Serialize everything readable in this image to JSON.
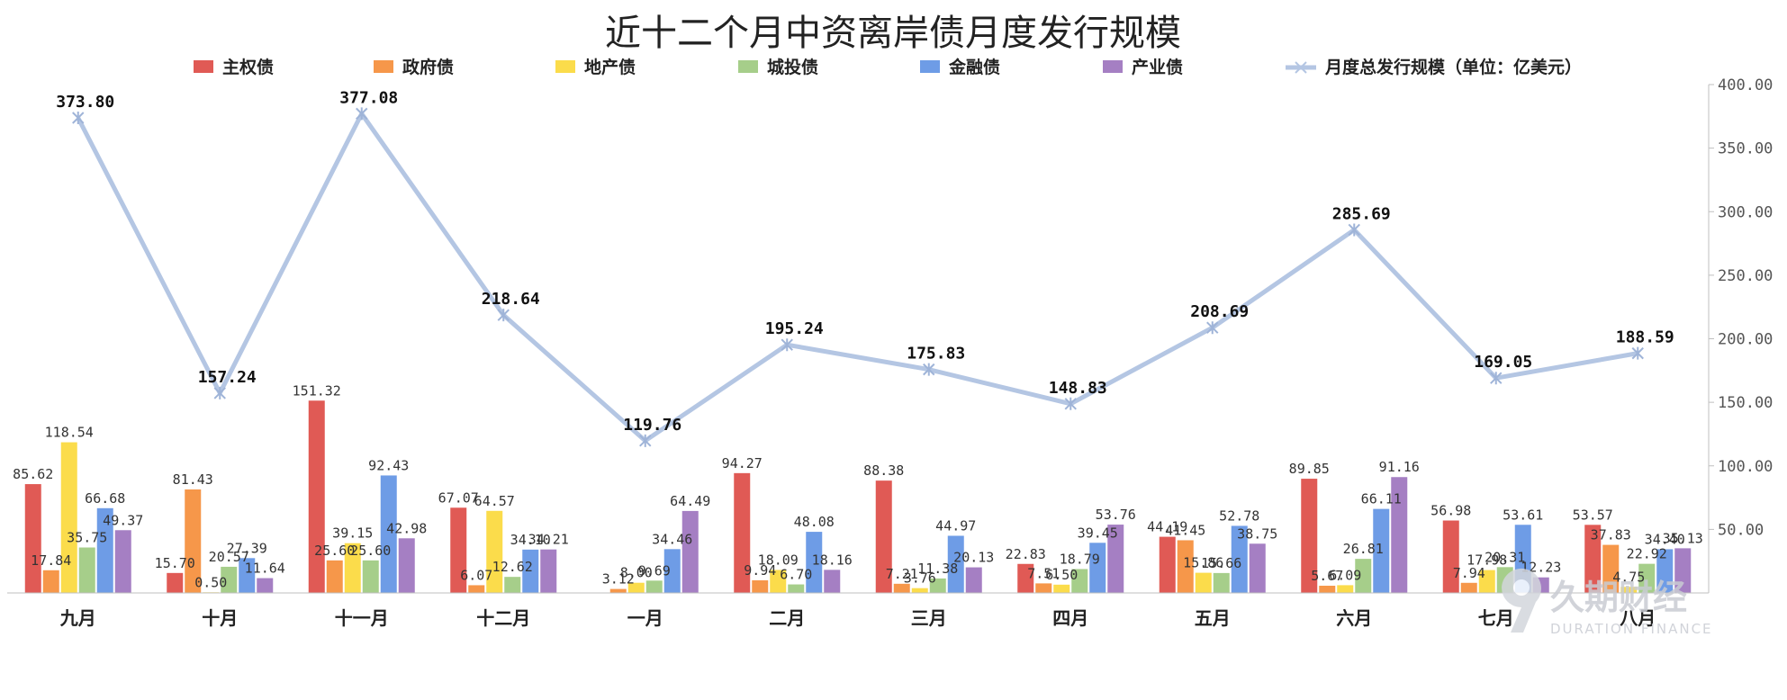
{
  "chart_data": {
    "type": "bar",
    "title": "近十二个月中资离岸债月度发行规模",
    "categories": [
      "九月",
      "十月",
      "十一月",
      "十二月",
      "一月",
      "二月",
      "三月",
      "四月",
      "五月",
      "六月",
      "七月",
      "八月"
    ],
    "ylim": [
      0,
      400
    ],
    "yticks": [
      "400.00",
      "350.00",
      "300.00",
      "250.00",
      "200.00",
      "150.00",
      "100.00",
      "50.00"
    ],
    "y_axis_position": "right",
    "grid": false,
    "legend_position": "top",
    "series": [
      {
        "name": "主权债",
        "color": "#e05a55",
        "values": [
          85.62,
          15.7,
          151.32,
          67.07,
          null,
          94.27,
          88.38,
          22.83,
          44.19,
          89.85,
          56.98,
          53.57
        ],
        "labels": [
          "85.62",
          "15.70",
          "151.32",
          "67.07",
          "",
          "94.27",
          "88.38",
          "22.83",
          "44.19",
          "89.85",
          "56.98",
          "53.57"
        ]
      },
      {
        "name": "政府债",
        "color": "#f6974a",
        "values": [
          17.84,
          81.43,
          25.6,
          6.07,
          3.12,
          9.94,
          7.21,
          7.51,
          41.45,
          5.67,
          7.94,
          37.83
        ],
        "labels": [
          "17.84",
          "81.43",
          "25.60",
          "6.07",
          "3.12",
          "9.94",
          "7.21",
          "7.51",
          "41.45",
          "5.67",
          "7.94",
          "37.83"
        ]
      },
      {
        "name": "地产债",
        "color": "#fbdc4b",
        "values": [
          118.54,
          0.5,
          39.15,
          64.57,
          8.0,
          18.09,
          3.76,
          6.5,
          15.86,
          6.09,
          17.98,
          4.75
        ],
        "labels": [
          "118.54",
          "0.50",
          "39.15",
          "64.57",
          "8.00",
          "18.09",
          "3.76",
          "6.50",
          "15.86",
          "6.09",
          "17.98",
          "4.75"
        ]
      },
      {
        "name": "城投债",
        "color": "#a6ce8a",
        "values": [
          35.75,
          20.57,
          25.6,
          12.62,
          9.69,
          6.7,
          11.38,
          18.79,
          15.66,
          26.81,
          20.31,
          22.92
        ],
        "labels": [
          "35.75",
          "20.57",
          "25.60",
          "12.62",
          "9.69",
          "6.70",
          "11.38",
          "18.79",
          "15.66",
          "26.81",
          "20.31",
          "22.92"
        ]
      },
      {
        "name": "金融债",
        "color": "#6e9ce6",
        "values": [
          66.68,
          27.39,
          92.43,
          34.1,
          34.46,
          48.08,
          44.97,
          39.45,
          52.78,
          66.11,
          53.61,
          34.4
        ],
        "labels": [
          "66.68",
          "27.39",
          "92.43",
          "34.10",
          "34.46",
          "48.08",
          "44.97",
          "39.45",
          "52.78",
          "66.11",
          "53.61",
          "34.40"
        ]
      },
      {
        "name": "产业债",
        "color": "#a57fc3",
        "values": [
          49.37,
          11.64,
          42.98,
          34.21,
          64.49,
          18.16,
          20.13,
          53.76,
          38.75,
          91.16,
          12.23,
          35.13
        ],
        "labels": [
          "49.37",
          "11.64",
          "42.98",
          "34.21",
          "64.49",
          "18.16",
          "20.13",
          "53.76",
          "38.75",
          "91.16",
          "12.23",
          "35.13"
        ]
      }
    ],
    "line": {
      "name": "月度总发行规模（单位：亿美元）",
      "color": "#b4c6e3",
      "values": [
        373.8,
        157.24,
        377.08,
        218.64,
        119.76,
        195.24,
        175.83,
        148.83,
        208.69,
        285.69,
        169.05,
        188.59
      ],
      "labels": [
        "373.80",
        "157.24",
        "377.08",
        "218.64",
        "119.76",
        "195.24",
        "175.83",
        "148.83",
        "208.69",
        "285.69",
        "169.05",
        "188.59"
      ]
    }
  },
  "watermark": {
    "logo_icon": "duration-finance-logo-icon",
    "text": "久期财经",
    "subtext": "DURATION FINANCE"
  }
}
